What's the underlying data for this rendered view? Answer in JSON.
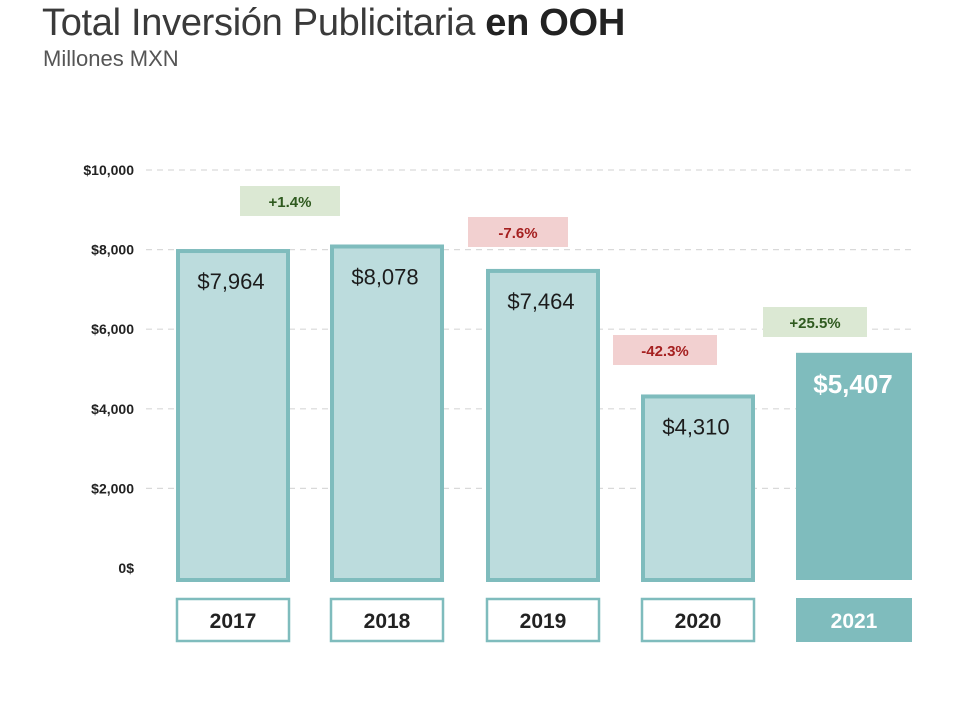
{
  "title_regular": "Total Inversión Publicitaria ",
  "title_bold": "en OOH",
  "subtitle": "Millones MXN",
  "colors": {
    "bar_fill": "#bcdcdd",
    "bar_stroke": "#7fbcbd",
    "highlight": "#7fbcbd",
    "gridline": "#d9d9d9",
    "positive_bg": "#dbe8d3",
    "positive_text": "#2f5a1f",
    "negative_bg": "#f2d0d0",
    "negative_text": "#a52020"
  },
  "chart_data": {
    "type": "bar",
    "categories": [
      "2017",
      "2018",
      "2019",
      "2020",
      "2021"
    ],
    "values": [
      7964,
      8078,
      7464,
      4310,
      5407
    ],
    "value_labels": [
      "$7,964",
      "$8,078",
      "$7,464",
      "$4,310",
      "$5,407"
    ],
    "highlighted_category": "2021",
    "changes": [
      {
        "between": [
          "2017",
          "2018"
        ],
        "label": "+1.4%",
        "direction": "positive"
      },
      {
        "between": [
          "2018",
          "2019"
        ],
        "label": "-7.6%",
        "direction": "negative"
      },
      {
        "between": [
          "2019",
          "2020"
        ],
        "label": "-42.3%",
        "direction": "negative"
      },
      {
        "between": [
          "2020",
          "2021"
        ],
        "label": "+25.5%",
        "direction": "positive"
      }
    ],
    "yticks": [
      0,
      2000,
      4000,
      6000,
      8000,
      10000
    ],
    "ytick_labels": [
      "0$",
      "$2,000",
      "$4,000",
      "$6,000",
      "$8,000",
      "$10,000"
    ],
    "ylim": [
      0,
      10000
    ],
    "grid": true,
    "title": "Total Inversión Publicitaria en OOH",
    "subtitle": "Millones MXN"
  }
}
